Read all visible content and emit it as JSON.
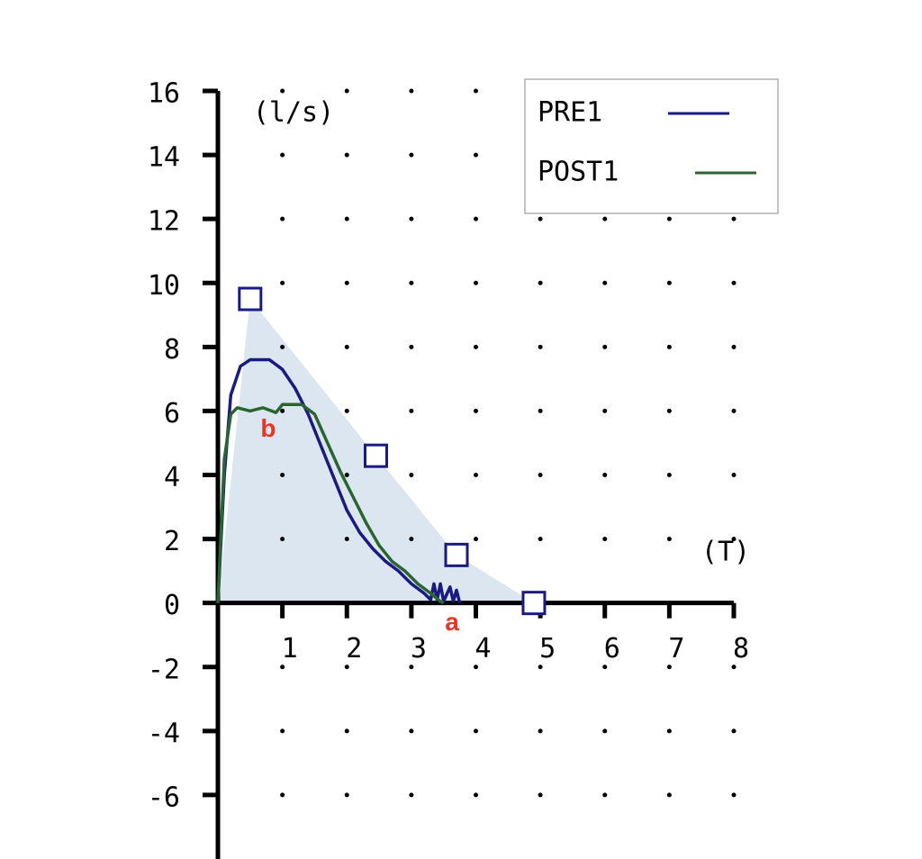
{
  "chart_data": {
    "type": "line",
    "x_label": "(T)",
    "y_label": "(l/s)",
    "xlim": [
      0,
      8
    ],
    "ylim": [
      -8,
      16
    ],
    "xticks": [
      1,
      2,
      3,
      4,
      5,
      6,
      7,
      8
    ],
    "yticks": [
      -6,
      -4,
      -2,
      0,
      2,
      4,
      6,
      8,
      10,
      12,
      14,
      16
    ],
    "grid": true,
    "legend": "top-right",
    "reference": {
      "color": "#dce6f0",
      "marker_color": "#1a1a80",
      "x": [
        0,
        0.5,
        2.45,
        3.7,
        4.9
      ],
      "values": [
        0,
        9.5,
        4.6,
        1.5,
        0
      ]
    },
    "series": [
      {
        "name": "PRE1",
        "color": "#1a1a80",
        "x": [
          0,
          0.1,
          0.2,
          0.35,
          0.5,
          0.8,
          1.0,
          1.2,
          1.4,
          1.6,
          1.8,
          2.0,
          2.2,
          2.4,
          2.6,
          2.8,
          3.0,
          3.2,
          3.3,
          3.35,
          3.4,
          3.45,
          3.5,
          3.6,
          3.65,
          3.7,
          3.75
        ],
        "values": [
          0,
          4,
          6.5,
          7.4,
          7.6,
          7.6,
          7.3,
          6.7,
          5.9,
          4.9,
          3.9,
          2.9,
          2.2,
          1.7,
          1.3,
          1.0,
          0.6,
          0.3,
          0.1,
          0.6,
          0.1,
          0.6,
          0.05,
          0.5,
          0.05,
          0.4,
          0
        ]
      },
      {
        "name": "POST1",
        "color": "#2a6430",
        "x": [
          0,
          0.1,
          0.2,
          0.3,
          0.5,
          0.7,
          0.9,
          1.0,
          1.3,
          1.5,
          1.7,
          1.9,
          2.1,
          2.3,
          2.5,
          2.7,
          2.9,
          3.1,
          3.3,
          3.45,
          3.5
        ],
        "values": [
          0,
          4.5,
          5.9,
          6.1,
          6.0,
          6.1,
          5.95,
          6.2,
          6.2,
          5.9,
          5.0,
          4.1,
          3.3,
          2.5,
          1.8,
          1.3,
          1.0,
          0.6,
          0.3,
          0.05,
          0
        ]
      }
    ],
    "annotations": [
      {
        "text": "b",
        "x": 0.78,
        "y": 5.4,
        "color": "#ee3322"
      },
      {
        "text": "a",
        "x": 3.63,
        "y": -0.65,
        "color": "#ee3322"
      }
    ]
  }
}
